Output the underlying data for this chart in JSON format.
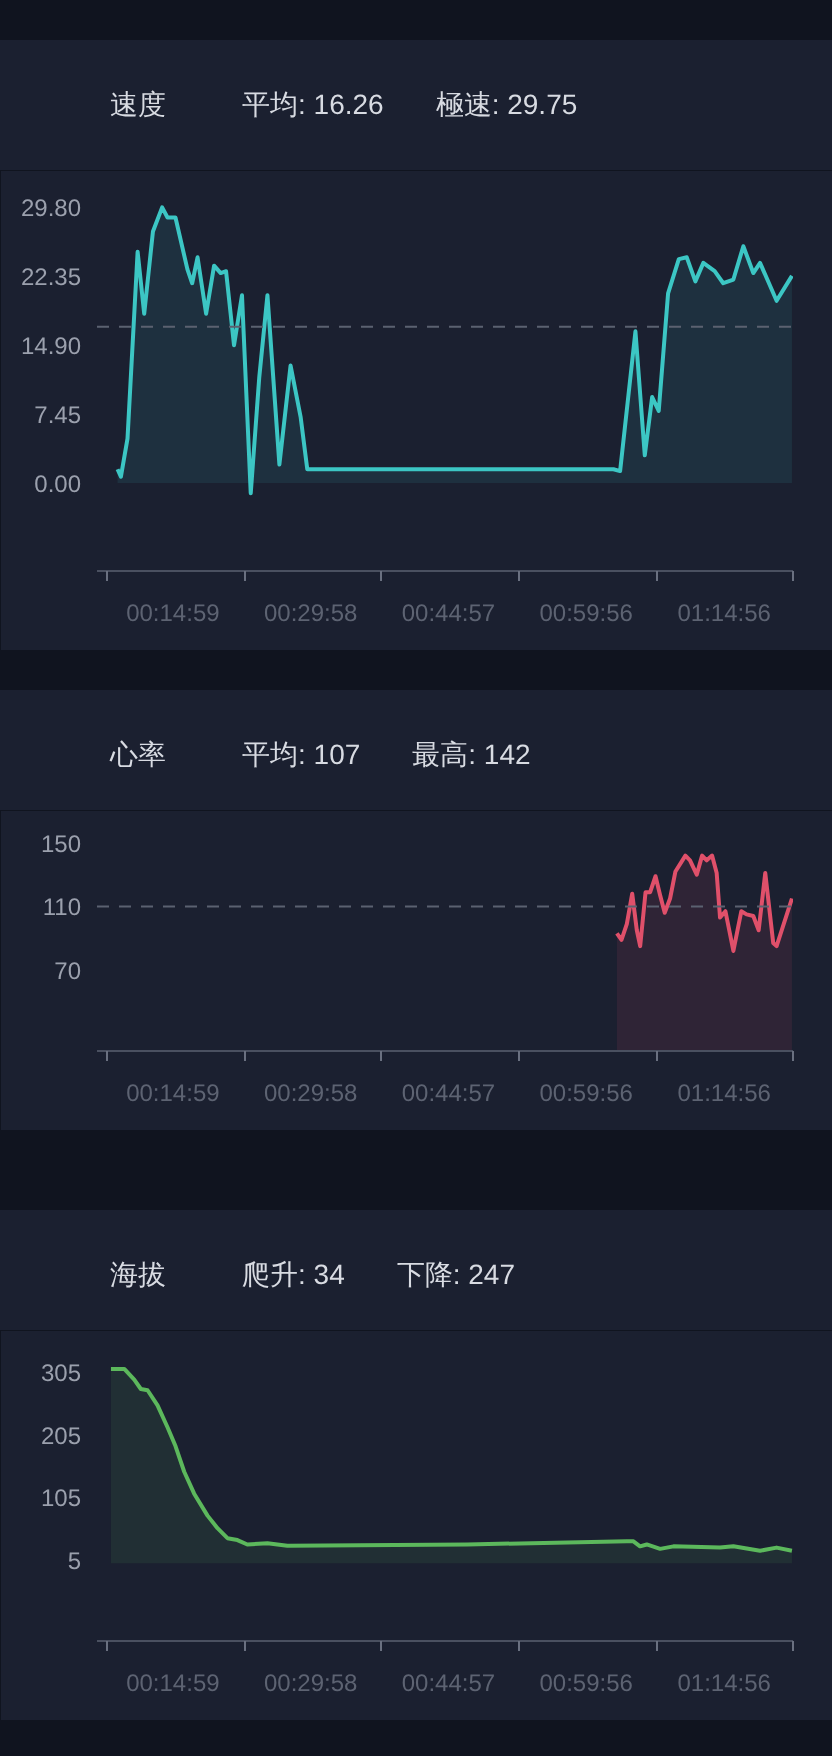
{
  "chart_data": [
    {
      "type": "area",
      "title": "速度",
      "annotations": [
        "平均: 16.26",
        "極速: 29.75"
      ],
      "color": "#3cc6c4",
      "x": [
        538,
        560,
        603,
        669,
        712,
        769,
        829,
        864,
        916,
        994,
        1025,
        1060,
        1116,
        1168,
        1211,
        1246,
        1298,
        1350,
        1407,
        1463,
        1516,
        1594,
        1667,
        1733,
        1776,
        3774,
        3817,
        3917,
        3978,
        4026,
        4069,
        4130,
        4200,
        4252,
        4308,
        4360,
        4434,
        4490,
        4556,
        4621,
        4686,
        4730,
        4838,
        4938
      ],
      "values": [
        1.5,
        0.7,
        4.8,
        25.0,
        18.3,
        27.2,
        29.8,
        28.7,
        28.7,
        23.1,
        21.6,
        24.4,
        18.3,
        23.5,
        22.7,
        22.9,
        14.9,
        20.3,
        -1.1,
        11.5,
        20.3,
        2.0,
        12.7,
        7.1,
        1.5,
        1.5,
        1.3,
        16.4,
        3.0,
        9.3,
        7.8,
        20.5,
        24.2,
        24.4,
        21.8,
        23.8,
        22.9,
        21.6,
        22.0,
        25.6,
        22.7,
        23.8,
        19.7,
        22.4
      ],
      "xlim": [
        404,
        4945
      ],
      "ylim": [
        -9.5,
        32
      ],
      "xticks": [
        {
          "value": 465,
          "label": null
        },
        {
          "value": 899,
          "label": "00:14:59"
        },
        {
          "value": 1364,
          "label": null
        },
        {
          "value": 1798,
          "label": "00:29:58"
        },
        {
          "value": 2263,
          "label": null
        },
        {
          "value": 2697,
          "label": "00:44:57"
        },
        {
          "value": 3157,
          "label": null
        },
        {
          "value": 3596,
          "label": "00:59:56"
        },
        {
          "value": 4061,
          "label": null
        },
        {
          "value": 4496,
          "label": "01:14:56"
        },
        {
          "value": 4945,
          "label": null
        }
      ],
      "yticks": [
        {
          "value": 0,
          "label": "0.00"
        },
        {
          "value": 7.45,
          "label": "7.45"
        },
        {
          "value": 14.9,
          "label": "14.90"
        },
        {
          "value": 22.35,
          "label": "22.35"
        },
        {
          "value": 29.8,
          "label": "29.80"
        }
      ],
      "ref_lines": [
        {
          "axis": "y",
          "value": 16.9,
          "line_style": "dashed",
          "color": "#5b6170"
        }
      ]
    },
    {
      "type": "area",
      "title": "心率",
      "annotations": [
        "平均: 107",
        "最高: 142"
      ],
      "color": "#e0506a",
      "x": [
        3796,
        3826,
        3861,
        3896,
        3926,
        3948,
        3983,
        4013,
        4048,
        4078,
        4108,
        4143,
        4178,
        4243,
        4273,
        4317,
        4352,
        4382,
        4417,
        4447,
        4469,
        4504,
        4556,
        4608,
        4642,
        4686,
        4721,
        4764,
        4816,
        4838,
        4938
      ],
      "values": [
        93,
        89,
        99,
        118,
        95,
        85,
        119,
        119,
        129,
        117,
        106,
        115,
        132,
        142,
        139,
        130,
        142,
        139,
        142,
        131,
        103,
        107,
        82,
        107,
        105,
        104,
        95,
        131,
        87,
        85,
        115
      ],
      "xlim": [
        404,
        4945
      ],
      "ylim": [
        19,
        160
      ],
      "xticks": [
        {
          "value": 465,
          "label": null
        },
        {
          "value": 899,
          "label": "00:14:59"
        },
        {
          "value": 1364,
          "label": null
        },
        {
          "value": 1798,
          "label": "00:29:58"
        },
        {
          "value": 2263,
          "label": null
        },
        {
          "value": 2697,
          "label": "00:44:57"
        },
        {
          "value": 3157,
          "label": null
        },
        {
          "value": 3596,
          "label": "00:59:56"
        },
        {
          "value": 4061,
          "label": null
        },
        {
          "value": 4496,
          "label": "01:14:56"
        },
        {
          "value": 4945,
          "label": null
        }
      ],
      "yticks": [
        70,
        110,
        150
      ],
      "ref_lines": [
        {
          "axis": "y",
          "value": 110,
          "line_style": "dashed",
          "color": "#5b6170"
        }
      ]
    },
    {
      "type": "area",
      "title": "海拔",
      "annotations": [
        "爬升: 34",
        "下降: 247"
      ],
      "color": "#5cb85c",
      "x": [
        495,
        582,
        647,
        690,
        734,
        799,
        864,
        916,
        973,
        1038,
        1125,
        1190,
        1255,
        1320,
        1385,
        1516,
        1646,
        2818,
        3861,
        3904,
        3947,
        3991,
        4078,
        4165,
        4469,
        4556,
        4730,
        4838,
        4938
      ],
      "values": [
        310,
        310,
        293,
        278,
        276,
        252,
        217,
        187,
        146,
        111,
        76,
        56,
        40,
        37,
        30,
        32,
        28,
        30,
        35,
        35,
        27,
        30,
        23,
        27,
        25,
        27,
        20,
        25,
        20
      ],
      "xlim": [
        404,
        4945
      ],
      "ylim": [
        -124,
        345
      ],
      "xticks": [
        {
          "value": 465,
          "label": null
        },
        {
          "value": 899,
          "label": "00:14:59"
        },
        {
          "value": 1364,
          "label": null
        },
        {
          "value": 1798,
          "label": "00:29:58"
        },
        {
          "value": 2263,
          "label": null
        },
        {
          "value": 2697,
          "label": "00:44:57"
        },
        {
          "value": 3157,
          "label": null
        },
        {
          "value": 3596,
          "label": "00:59:56"
        },
        {
          "value": 4061,
          "label": null
        },
        {
          "value": 4496,
          "label": "01:14:56"
        },
        {
          "value": 4945,
          "label": null
        }
      ],
      "yticks": [
        5,
        105,
        205,
        305
      ]
    }
  ]
}
